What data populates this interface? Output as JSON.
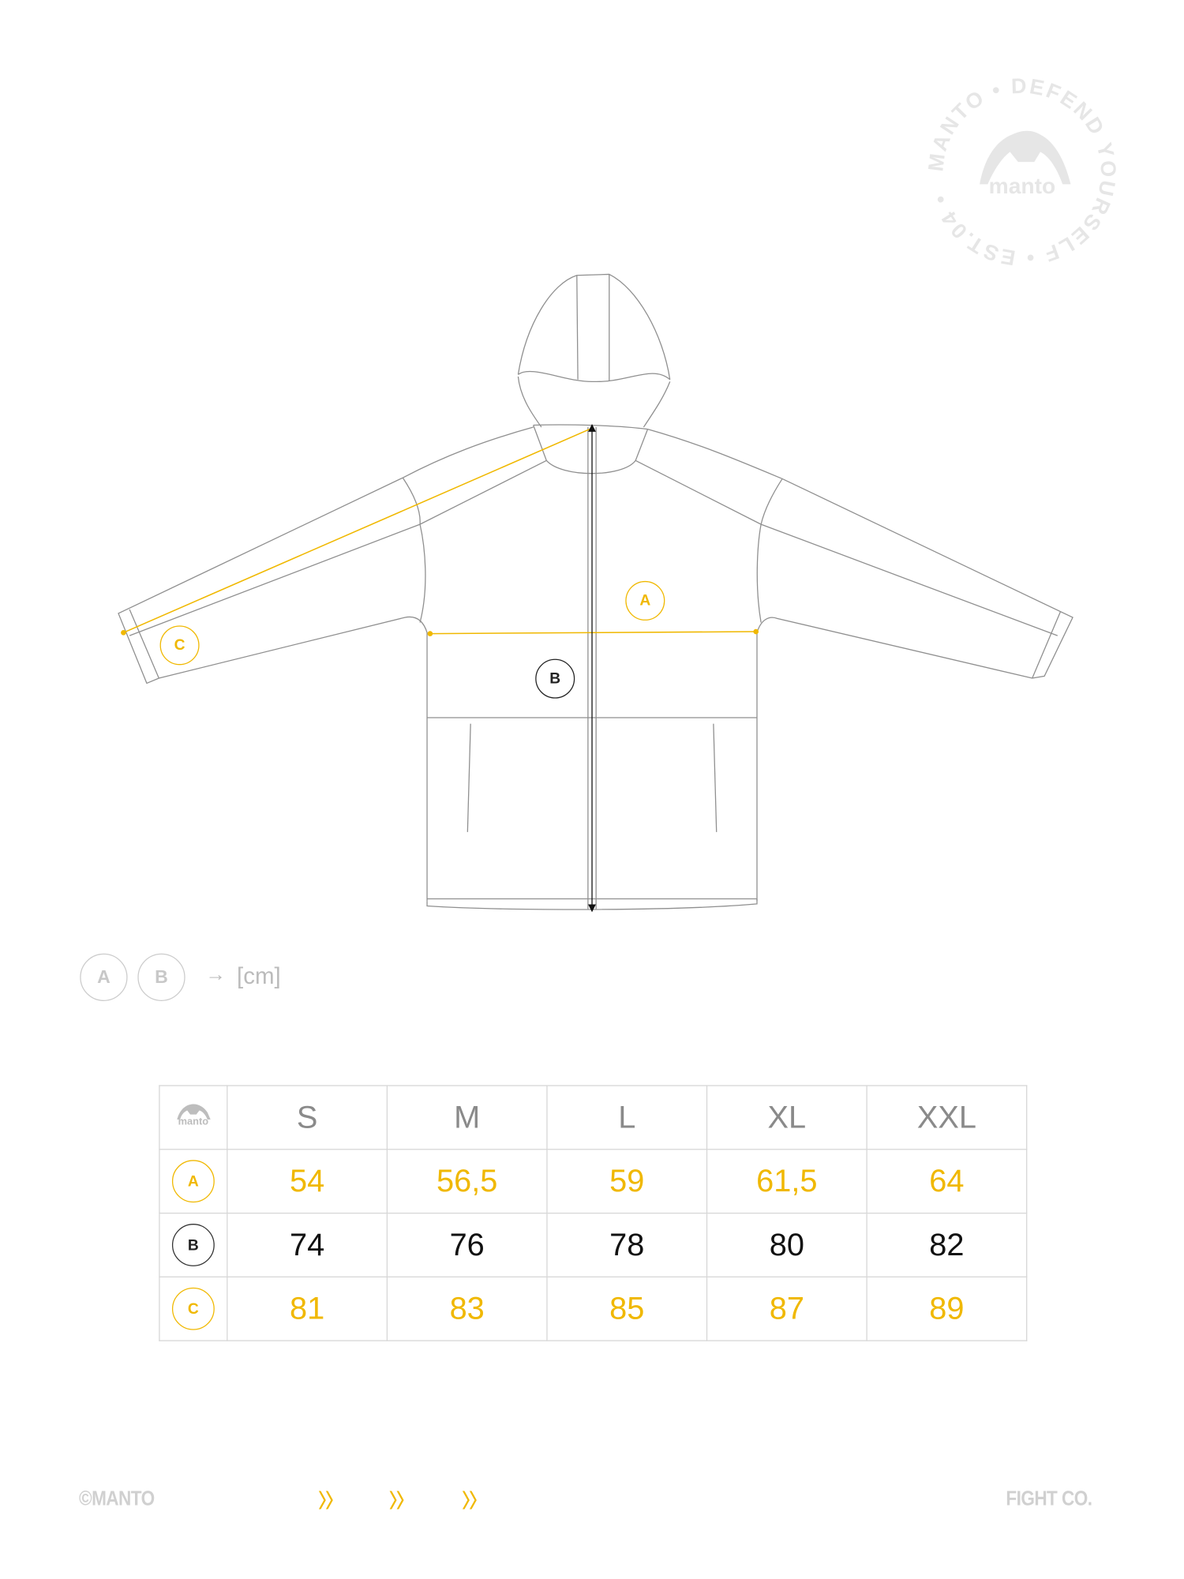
{
  "colors": {
    "accent": "#f0b800",
    "dark": "#111111",
    "muted": "#c8c8c8"
  },
  "stamp": {
    "text": "MANTO • DEFEND YOURSELF • EST.04 •",
    "logo": "manto"
  },
  "diagram": {
    "labels": {
      "a": "A",
      "b": "B",
      "c": "C"
    }
  },
  "legend": {
    "a": "A",
    "b": "B",
    "arrow": "→",
    "unit": "[cm]"
  },
  "table": {
    "logo": "manto",
    "headers": [
      "S",
      "M",
      "L",
      "XL",
      "XXL"
    ],
    "rows": [
      {
        "label": "A",
        "values": [
          "54",
          "56,5",
          "59",
          "61,5",
          "64"
        ]
      },
      {
        "label": "B",
        "values": [
          "74",
          "76",
          "78",
          "80",
          "82"
        ]
      },
      {
        "label": "C",
        "values": [
          "81",
          "83",
          "85",
          "87",
          "89"
        ]
      }
    ]
  },
  "footer": {
    "left": "©MANTO",
    "right": "FIGHT CO.",
    "chevron_icon": "double-chevron-right-icon"
  }
}
